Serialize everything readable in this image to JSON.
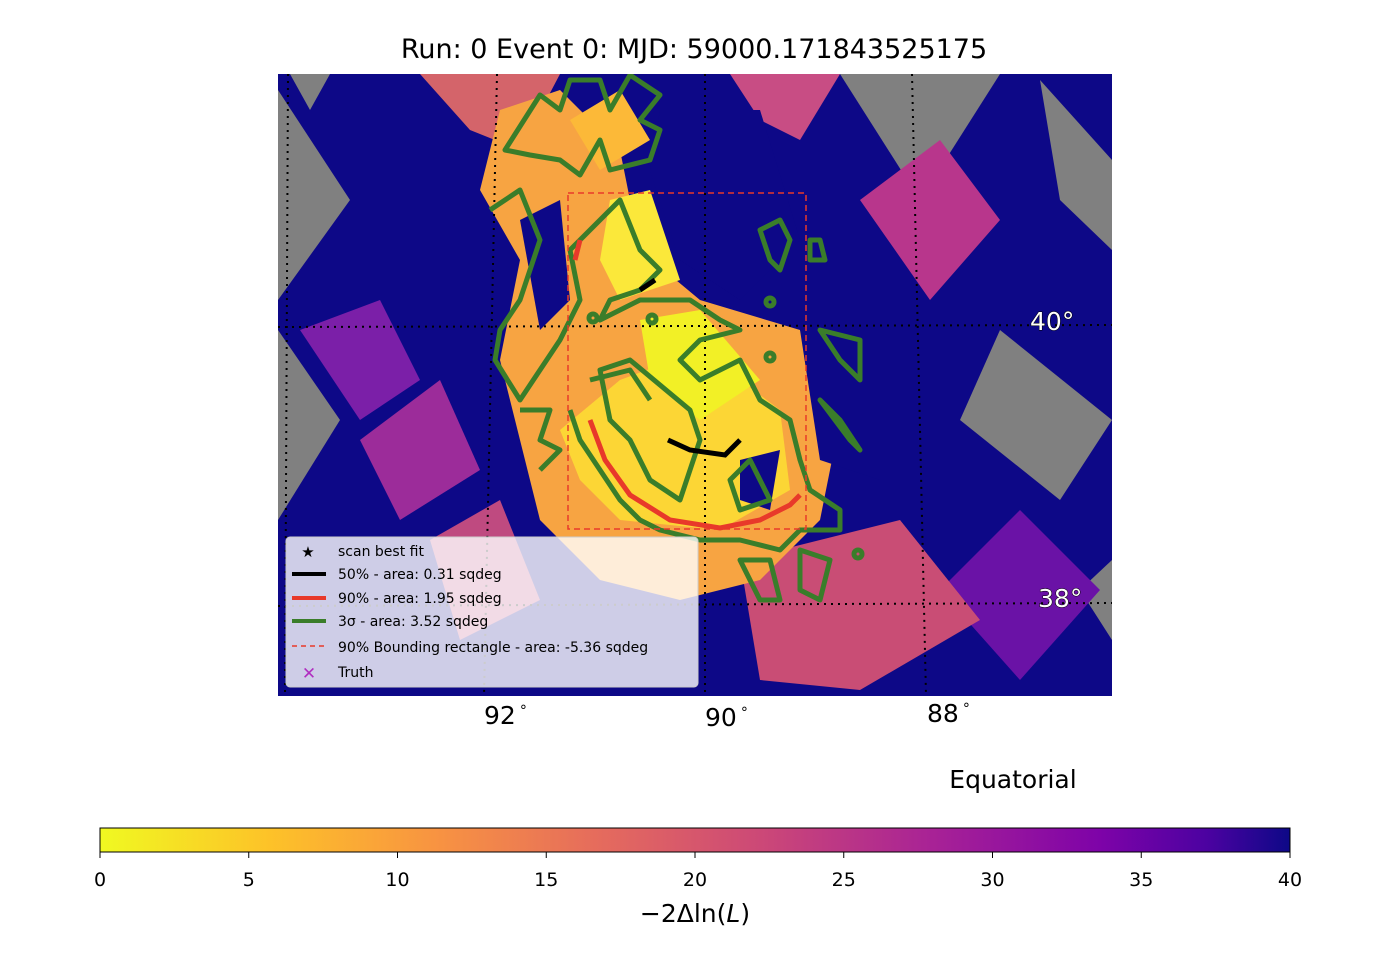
{
  "chart_data": {
    "type": "heatmap",
    "title": "Run: 0 Event 0: MJD: 59000.171843525175",
    "projection_label": "Equatorial",
    "ra_ticks": [
      "92$^\\circ$",
      "90$^\\circ$",
      "88$^\\circ$"
    ],
    "ra_tick_labels": [
      "92",
      "90",
      "88"
    ],
    "dec_tick_labels": [
      "40",
      "38"
    ],
    "degree_symbol": "°",
    "colorbar": {
      "label": "−2Δln(L)",
      "label_parts": [
        "−2Δln(",
        "L",
        ")"
      ],
      "range": [
        0,
        40
      ],
      "ticks": [
        "0",
        "5",
        "10",
        "15",
        "20",
        "25",
        "30",
        "35",
        "40"
      ],
      "colormap": [
        "#f0f921",
        "#fca636",
        "#e16462",
        "#b12a90",
        "#6a00a8",
        "#0d0887"
      ]
    },
    "series": [
      {
        "name": "scan best fit",
        "marker": "star",
        "color": "#000000"
      },
      {
        "name": "50% - area: 0.31 sqdeg",
        "style": "solid",
        "color": "#000000"
      },
      {
        "name": "90% - area: 1.95 sqdeg",
        "style": "solid",
        "color": "#e8392a"
      },
      {
        "name": "3σ - area: 3.52 sqdeg",
        "style": "solid",
        "color": "#3a7d2a"
      },
      {
        "name": "90% Bounding rectangle - area: -5.36 sqdeg",
        "style": "dashed",
        "color": "#e8392a"
      },
      {
        "name": "Truth",
        "marker": "x",
        "color": "#b02ec0"
      }
    ],
    "legend_position": "lower-left",
    "grid": true,
    "masked_color": "#808080"
  }
}
